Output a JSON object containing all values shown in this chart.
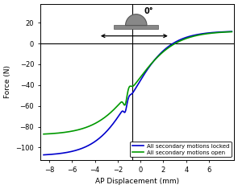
{
  "xlabel": "AP Displacement (mm)",
  "ylabel": "Force (N)",
  "xlim": [
    -8.8,
    8.2
  ],
  "ylim": [
    -112,
    38
  ],
  "xticks": [
    -8,
    -6,
    -4,
    -2,
    0,
    2,
    4,
    6
  ],
  "yticks": [
    -100,
    -80,
    -60,
    -40,
    -20,
    0,
    20
  ],
  "line1_color": "#0000cc",
  "line2_color": "#009900",
  "legend_labels": [
    "All secondary motions locked",
    "All secondary motions open"
  ],
  "background_color": "#ffffff",
  "vline_x": -0.7,
  "hline_y": 0
}
